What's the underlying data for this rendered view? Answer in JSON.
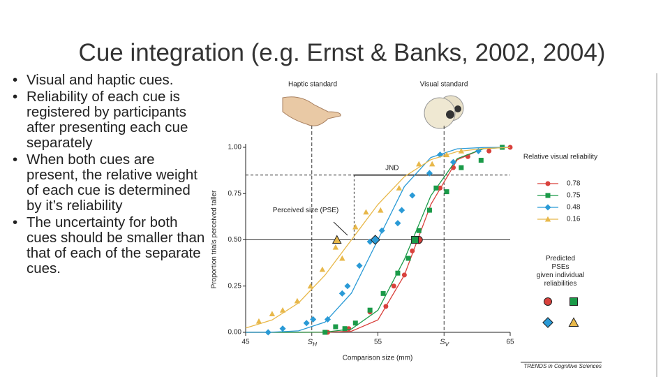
{
  "slide_title": "Cue integration (e.g. Ernst & Banks, 2002, 2004)",
  "bullets": [
    "Visual and haptic cues.",
    "Reliability of each cue is registered by participants after presenting each cue separately",
    "When both cues are present, the relative weight of each cue is determined by it’s reliability",
    "The uncertainty for both cues should be smaller than that of each of the separate cues."
  ],
  "chart_data": {
    "type": "scatter",
    "xlabel": "Comparison size (mm)",
    "ylabel": "Proportion trials perceived taller",
    "xlim": [
      45,
      65
    ],
    "xticks": [
      45,
      55,
      65
    ],
    "ylim": [
      0,
      1
    ],
    "yticks": [
      {
        "value": 0,
        "label": "0.00"
      },
      {
        "value": 0.25,
        "label": "0.25"
      },
      {
        "value": 0.5,
        "label": "0.50"
      },
      {
        "value": 0.75,
        "label": "0.75"
      },
      {
        "value": 1,
        "label": "1.00"
      }
    ],
    "legend_title": "Relative visual reliability",
    "series": [
      {
        "name": "0.78",
        "color": "#d9413c",
        "marker": "circle",
        "x": [
          51.2,
          52.8,
          54.4,
          55.6,
          56.2,
          57,
          57.6,
          58.1,
          58.9,
          59.7,
          60.7,
          61.8,
          63.4,
          65
        ],
        "values": [
          0,
          0.02,
          0.11,
          0.14,
          0.25,
          0.31,
          0.44,
          0.49,
          0.66,
          0.78,
          0.89,
          0.95,
          0.98,
          1
        ],
        "fit": {
          "x": [
            45,
            47,
            49,
            51,
            53,
            55,
            57,
            59,
            61,
            63,
            65
          ],
          "values": [
            0,
            0,
            0,
            0,
            0.006,
            0.067,
            0.309,
            0.691,
            0.933,
            0.994,
            1
          ]
        }
      },
      {
        "name": "0.75",
        "color": "#1a9a48",
        "marker": "square",
        "x": [
          51,
          51.8,
          52.5,
          53.3,
          54.4,
          55.4,
          56.5,
          57.3,
          58.1,
          58.9,
          59.4,
          60.2,
          61.3,
          62.8,
          64.4
        ],
        "values": [
          0,
          0.03,
          0.02,
          0.05,
          0.12,
          0.21,
          0.32,
          0.4,
          0.55,
          0.66,
          0.78,
          0.76,
          0.89,
          0.93,
          1
        ],
        "fit": {
          "x": [
            45,
            47,
            49,
            51,
            53,
            55,
            57,
            59,
            61,
            63,
            65
          ],
          "values": [
            0,
            0,
            0,
            0.001,
            0.018,
            0.119,
            0.394,
            0.738,
            0.939,
            0.993,
            1
          ]
        }
      },
      {
        "name": "0.48",
        "color": "#2a9ad6",
        "marker": "diamond",
        "x": [
          46.7,
          47.8,
          49.6,
          50.1,
          51.2,
          52.3,
          52.7,
          53.6,
          54.4,
          55.3,
          56.5,
          56.8,
          57.6,
          58.9,
          59.7,
          60.7,
          62.6
        ],
        "values": [
          0,
          0.02,
          0.05,
          0.07,
          0.07,
          0.21,
          0.25,
          0.36,
          0.49,
          0.55,
          0.59,
          0.66,
          0.74,
          0.86,
          0.96,
          0.92,
          0.98
        ],
        "fit": {
          "x": [
            45,
            47,
            49,
            51,
            53,
            55,
            57,
            59,
            61,
            63,
            65
          ],
          "values": [
            0,
            0.001,
            0.008,
            0.055,
            0.212,
            0.5,
            0.788,
            0.945,
            0.992,
            0.999,
            1
          ]
        }
      },
      {
        "name": "0.16",
        "color": "#e8b84a",
        "marker": "triangle",
        "x": [
          46,
          47,
          47.8,
          48.9,
          49.9,
          50.8,
          51.8,
          52.3,
          53.3,
          54.1,
          55.2,
          56.6,
          58.1,
          59.1,
          60.2,
          61.3
        ],
        "values": [
          0.06,
          0.1,
          0.12,
          0.17,
          0.25,
          0.34,
          0.46,
          0.4,
          0.57,
          0.65,
          0.66,
          0.78,
          0.91,
          0.91,
          0.96,
          0.98
        ],
        "fit": {
          "x": [
            45,
            47,
            49,
            51,
            53,
            55,
            57,
            59,
            61,
            63,
            65
          ],
          "values": [
            0.023,
            0.067,
            0.159,
            0.309,
            0.5,
            0.691,
            0.841,
            0.933,
            0.977,
            0.994,
            0.999
          ]
        }
      }
    ],
    "predicted_pse": {
      "title": "Predicted PSEs given individual reliabilities",
      "x": [
        58.1,
        57.8,
        54.8,
        51.9
      ],
      "values": [
        0.5,
        0.5,
        0.5,
        0.5
      ]
    },
    "reference_lines": [
      {
        "x": 50,
        "label": "S",
        "sub": "H"
      },
      {
        "x": 60,
        "label": "S",
        "sub": "V"
      }
    ],
    "criterion": 0.5,
    "jnd": {
      "label": "JND",
      "x": [
        53.2,
        60
      ],
      "y": 0.85
    },
    "pse_note": "Perceived size (PSE)",
    "stimuli": [
      "Haptic standard",
      "Visual standard"
    ],
    "credit": "TRENDS in Cognitive Sciences"
  }
}
